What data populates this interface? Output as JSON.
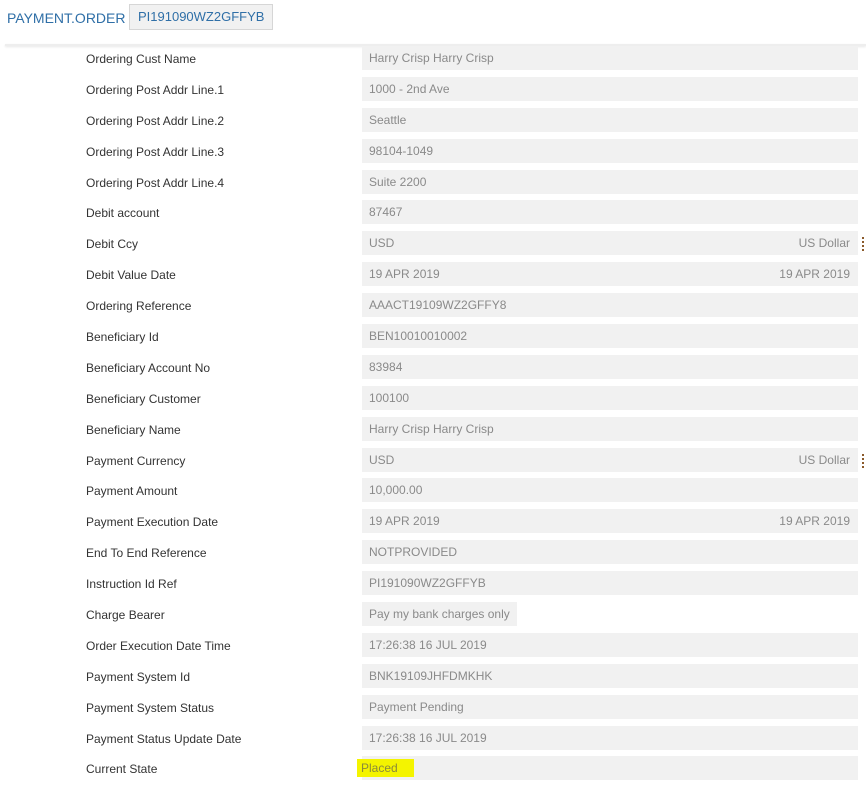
{
  "header": {
    "title": "PAYMENT.ORDER",
    "record_id": "PI191090WZ2GFFYB"
  },
  "fields": [
    {
      "label": "Ordering Cust Name",
      "value": "Harry Crisp Harry Crisp"
    },
    {
      "label": "Ordering Post Addr Line.1",
      "value": "1000 - 2nd Ave"
    },
    {
      "label": "Ordering Post Addr Line.2",
      "value": "Seattle"
    },
    {
      "label": "Ordering Post Addr Line.3",
      "value": "98104-1049"
    },
    {
      "label": "Ordering Post Addr Line.4",
      "value": "Suite 2200"
    },
    {
      "label": "Debit account",
      "value": "87467"
    },
    {
      "label": "Debit Ccy",
      "value": "USD",
      "extra": "US Dollar"
    },
    {
      "label": "Debit Value Date",
      "value": "19 APR 2019",
      "extra": "19 APR 2019"
    },
    {
      "label": "Ordering Reference",
      "value": "AAACT19109WZ2GFFY8"
    },
    {
      "label": "Beneficiary Id",
      "value": "BEN10010010002"
    },
    {
      "label": "Beneficiary Account No",
      "value": "83984"
    },
    {
      "label": "Beneficiary Customer",
      "value": "100100"
    },
    {
      "label": "Beneficiary Name",
      "value": "Harry Crisp Harry Crisp"
    },
    {
      "label": "Payment Currency",
      "value": "USD",
      "extra": "US Dollar"
    },
    {
      "label": "Payment Amount",
      "value": "10,000.00"
    },
    {
      "label": "Payment Execution Date",
      "value": "19 APR 2019",
      "extra": "19 APR 2019"
    },
    {
      "label": "End To End Reference",
      "value": "NOTPROVIDED"
    },
    {
      "label": "Instruction Id Ref",
      "value": "PI191090WZ2GFFYB"
    },
    {
      "label": "Charge Bearer",
      "value": "Pay my bank charges only"
    },
    {
      "label": "Order Execution Date Time",
      "value": "17:26:38 16 JUL 2019"
    },
    {
      "label": "Payment System Id",
      "value": "BNK19109JHFDMKHK"
    },
    {
      "label": "Payment System Status",
      "value": "Payment Pending"
    },
    {
      "label": "Payment Status Update Date",
      "value": "17:26:38 16 JUL 2019"
    },
    {
      "label": "Current State",
      "value": "Placed"
    }
  ],
  "colors": {
    "title": "#2f6fa7",
    "highlight": "#f4f400"
  }
}
